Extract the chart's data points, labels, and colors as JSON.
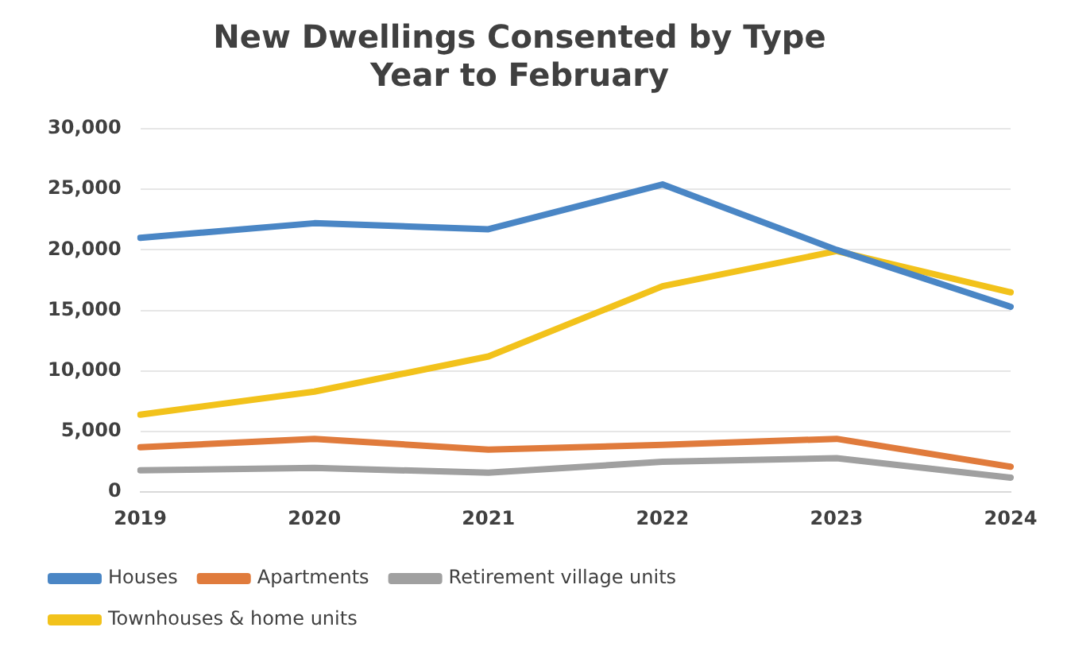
{
  "chart_data": {
    "type": "line",
    "title": [
      "New Dwellings Consented by Type",
      "Year to February"
    ],
    "categories": [
      "2019",
      "2020",
      "2021",
      "2022",
      "2023",
      "2024"
    ],
    "series": [
      {
        "name": "Houses",
        "color": "#4a86c5",
        "values": [
          21000,
          22200,
          21700,
          25400,
          20000,
          15300
        ]
      },
      {
        "name": "Apartments",
        "color": "#e07b3c",
        "values": [
          3700,
          4400,
          3500,
          3900,
          4400,
          2100
        ]
      },
      {
        "name": "Retirement village units",
        "color": "#a0a0a0",
        "values": [
          1800,
          2000,
          1600,
          2500,
          2800,
          1200
        ]
      },
      {
        "name": "Townhouses & home units",
        "color": "#f2c21b",
        "values": [
          6400,
          8300,
          11200,
          17000,
          19900,
          16500
        ]
      }
    ],
    "ylim": [
      0,
      30000
    ],
    "yticks": [
      {
        "value": 0,
        "label": "0"
      },
      {
        "value": 5000,
        "label": "5,000"
      },
      {
        "value": 10000,
        "label": "10,000"
      },
      {
        "value": 15000,
        "label": "15,000"
      },
      {
        "value": 20000,
        "label": "20,000"
      },
      {
        "value": 25000,
        "label": "25,000"
      },
      {
        "value": 30000,
        "label": "30,000"
      }
    ],
    "grid": "y",
    "legend": "bottom",
    "marker": "none",
    "line_style": "solid"
  }
}
